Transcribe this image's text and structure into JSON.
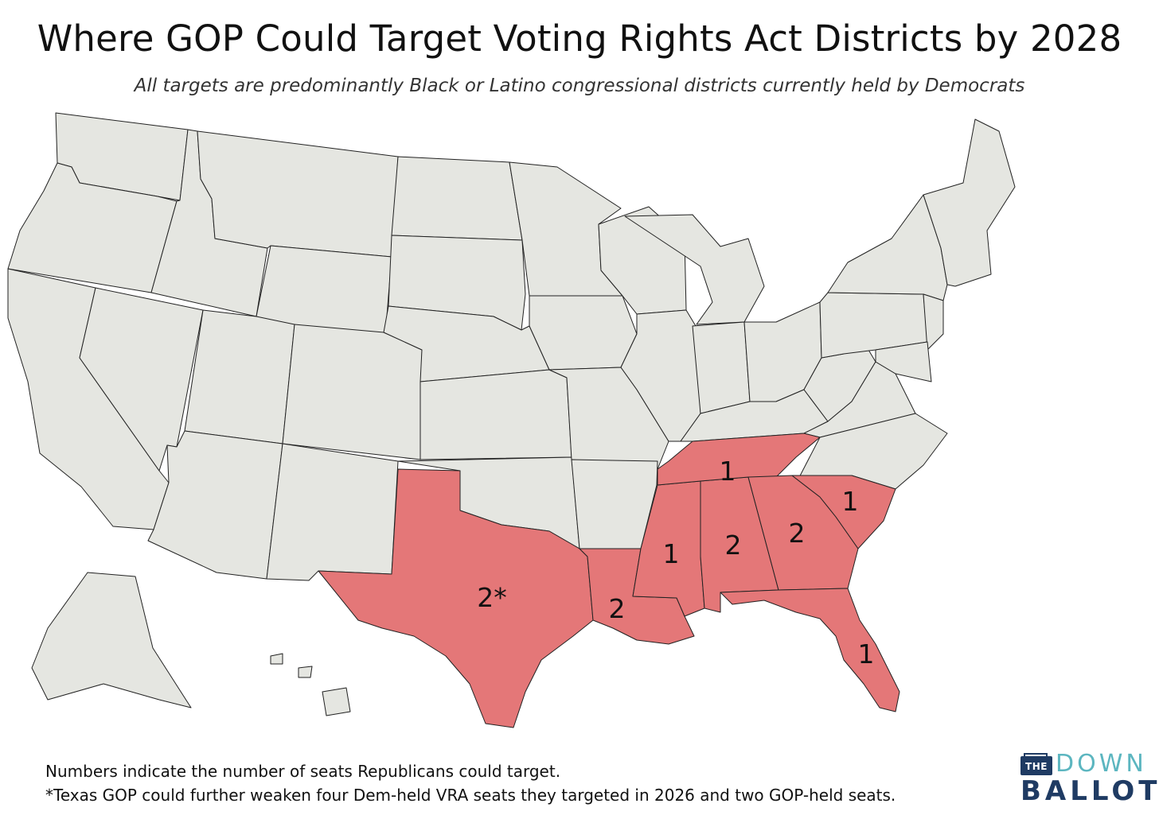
{
  "title": "Where GOP Could Target Voting Rights Act Districts by 2028",
  "subtitle": "All targets are predominantly Black or Latino congressional districts currently held by Democrats",
  "colors": {
    "target_fill": "#e47778",
    "other_fill": "#e5e6e1",
    "border": "#222222"
  },
  "states": [
    {
      "name": "Texas",
      "seats": "2*"
    },
    {
      "name": "Louisiana",
      "seats": "2"
    },
    {
      "name": "Mississippi",
      "seats": "1"
    },
    {
      "name": "Alabama",
      "seats": "2"
    },
    {
      "name": "Georgia",
      "seats": "2"
    },
    {
      "name": "Tennessee",
      "seats": "1"
    },
    {
      "name": "South Carolina",
      "seats": "1"
    },
    {
      "name": "Florida",
      "seats": "1"
    }
  ],
  "footnotes": {
    "note1": "Numbers indicate the number of seats Republicans could target.",
    "note2": "*Texas GOP could further weaken four Dem-held VRA seats they targeted in 2026 and two GOP-held seats."
  },
  "logo": {
    "the": "THE",
    "down": "DOWN",
    "ballot": "BALLOT"
  }
}
